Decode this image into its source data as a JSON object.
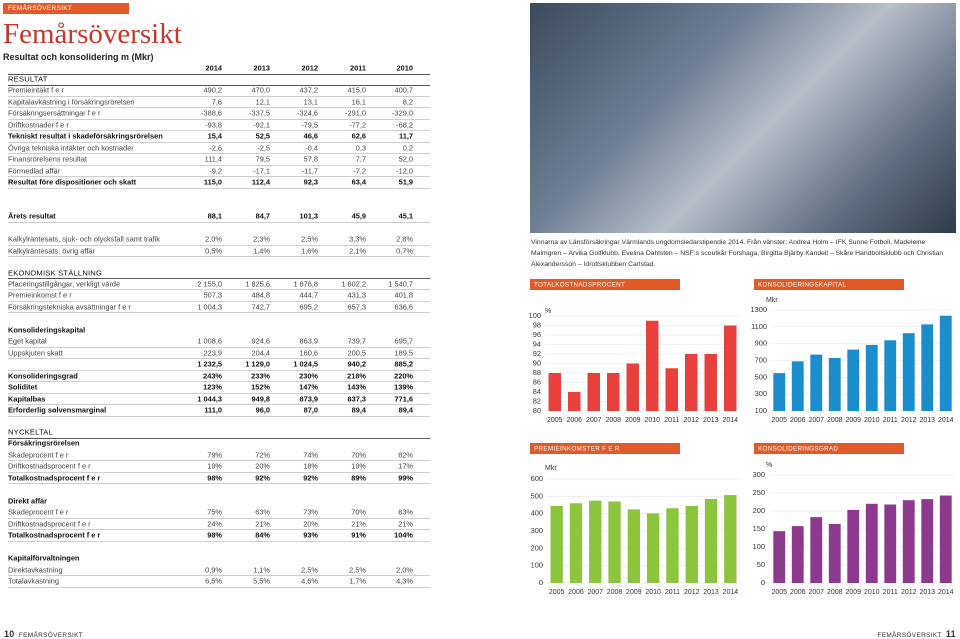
{
  "header": {
    "tag": "FEMÅRSÖVERSIKT",
    "title": "Femårsöversikt",
    "subtitle": "Resultat och konsolidering m (Mkr)"
  },
  "table": {
    "columns": [
      "2014",
      "2013",
      "2012",
      "2011",
      "2010"
    ],
    "sections": [
      {
        "title": "RESULTAT",
        "groups": [
          {
            "rows": [
              {
                "label": "Premieintäkt f e r",
                "values": [
                  "490,2",
                  "470,0",
                  "437,2",
                  "415,0",
                  "400,7"
                ]
              },
              {
                "label": "Kapitalavkastning i försäkringsrörelsen",
                "values": [
                  "7,6",
                  "12,1",
                  "13,1",
                  "16,1",
                  "8,2"
                ]
              },
              {
                "label": "Försäkringsersättningar f e r",
                "values": [
                  "-388,6",
                  "-337,5",
                  "-324,6",
                  "-291,0",
                  "-329,0"
                ]
              },
              {
                "label": "Driftkostnader f e r",
                "values": [
                  "-93,8",
                  "-92,1",
                  "-79,5",
                  "-77,2",
                  "-68,2"
                ]
              },
              {
                "label": "Tekniskt resultat i skadeförsäkringsrörelsen",
                "values": [
                  "15,4",
                  "52,5",
                  "46,6",
                  "62,6",
                  "11,7"
                ],
                "bold": true
              },
              {
                "label": "Övriga tekniska intäkter och kostnader",
                "values": [
                  "-2,6",
                  "-2,5",
                  "-0,4",
                  "0,3",
                  "0,2"
                ]
              },
              {
                "label": "Finansrörelsens resultat",
                "values": [
                  "111,4",
                  "79,5",
                  "57,8",
                  "7,7",
                  "52,0"
                ]
              },
              {
                "label": "Förmedlad affär",
                "values": [
                  "-9,2",
                  "-17,1",
                  "-11,7",
                  "-7,2",
                  "-12,0"
                ]
              },
              {
                "label": "Resultat före dispositioner och skatt",
                "values": [
                  "115,0",
                  "112,4",
                  "92,3",
                  "63,4",
                  "51,9"
                ],
                "bold": true
              }
            ]
          },
          {
            "rows": [
              {
                "label": "Årets resultat",
                "values": [
                  "88,1",
                  "84,7",
                  "101,3",
                  "45,9",
                  "45,1"
                ],
                "bold": true
              }
            ]
          },
          {
            "rows": [
              {
                "label": "Kalkylräntesats, sjuk- och olycksfall samt trafik",
                "values": [
                  "2,0%",
                  "2,3%",
                  "2,5%",
                  "3,3%",
                  "2,8%"
                ]
              },
              {
                "label": "Kalkylräntesats, övrig affär",
                "values": [
                  "0,5%",
                  "1,4%",
                  "1,6%",
                  "2,1%",
                  "0,7%"
                ]
              }
            ]
          }
        ]
      },
      {
        "title": "EKONOMISK STÄLLNING",
        "groups": [
          {
            "rows": [
              {
                "label": "Placeringstillgångar, verkligt värde",
                "values": [
                  "2 155,0",
                  "1 825,6",
                  "1 676,8",
                  "1 602,2",
                  "1 540,7"
                ]
              },
              {
                "label": "Premieinkomst f e r",
                "values": [
                  "507,3",
                  "484,8",
                  "444,7",
                  "431,3",
                  "401,8"
                ]
              },
              {
                "label": "Försäkringstekniska avsättningar f e r",
                "values": [
                  "1 004,3",
                  "742,7",
                  "695,2",
                  "657,3",
                  "636,6"
                ]
              }
            ]
          },
          {
            "title": "Konsolideringskapital",
            "rows": [
              {
                "label": "Eget kapital",
                "values": [
                  "1 008,6",
                  "924,6",
                  "863,9",
                  "739,7",
                  "695,7"
                ]
              },
              {
                "label": "Uppskjuten skatt",
                "values": [
                  "223,9",
                  "204,4",
                  "160,6",
                  "200,5",
                  "189,5"
                ]
              },
              {
                "values": [
                  "1 232,5",
                  "1 129,0",
                  "1 024,5",
                  "940,2",
                  "885,2"
                ],
                "bold": true
              },
              {
                "label": "Konsolideringsgrad",
                "values": [
                  "243%",
                  "233%",
                  "230%",
                  "218%",
                  "220%"
                ],
                "bold": true
              },
              {
                "label": "Soliditet",
                "values": [
                  "123%",
                  "152%",
                  "147%",
                  "143%",
                  "139%"
                ],
                "bold": true
              },
              {
                "label": "Kapitalbas",
                "values": [
                  "1 044,3",
                  "949,8",
                  "873,9",
                  "837,3",
                  "771,6"
                ],
                "bold": true
              },
              {
                "label": "Erforderlig solvensmarginal",
                "values": [
                  "111,0",
                  "96,0",
                  "87,0",
                  "89,4",
                  "89,4"
                ],
                "bold": true
              }
            ]
          }
        ]
      },
      {
        "title": "NYCKELTAL",
        "groups": [
          {
            "title": "Försäkringsrörelsen",
            "rows": [
              {
                "label": "Skadeprocent f e r",
                "values": [
                  "79%",
                  "72%",
                  "74%",
                  "70%",
                  "82%"
                ]
              },
              {
                "label": "Driftkostnadsprocent f e r",
                "values": [
                  "19%",
                  "20%",
                  "18%",
                  "19%",
                  "17%"
                ]
              },
              {
                "label": "Totalkostnadsprocent f e r",
                "values": [
                  "98%",
                  "92%",
                  "92%",
                  "89%",
                  "99%"
                ],
                "bold": true
              }
            ]
          },
          {
            "title": "Direkt affär",
            "rows": [
              {
                "label": "Skadeprocent f e r",
                "values": [
                  "75%",
                  "63%",
                  "73%",
                  "70%",
                  "83%"
                ]
              },
              {
                "label": "Driftkostnadsprocent f e r",
                "values": [
                  "24%",
                  "21%",
                  "20%",
                  "21%",
                  "21%"
                ]
              },
              {
                "label": "Totalkostnadsprocent f e r",
                "values": [
                  "98%",
                  "84%",
                  "93%",
                  "91%",
                  "104%"
                ],
                "bold": true
              }
            ]
          },
          {
            "title": "Kapitalförvaltningen",
            "rows": [
              {
                "label": "Direktavkastning",
                "values": [
                  "0,9%",
                  "1,1%",
                  "2,5%",
                  "2,5%",
                  "2,0%"
                ]
              },
              {
                "label": "Totalavkastning",
                "values": [
                  "6,5%",
                  "5,5%",
                  "4,6%",
                  "1,7%",
                  "4,3%"
                ]
              }
            ]
          }
        ]
      }
    ]
  },
  "photo": {
    "caption": "Vinnarna av Länsförsäkringar Värmlands ungdomsledarstipendie 2014. Från vänster; Andrea Holm – IFK Sunne Fotboll, Madeleine Malmgren – Arvika Golfklubb, Evelina Dahlsten – NSF:s scoutkår Forshaga, Birgitta Bjärby Kandell – Skåre Handbollsklubb och Christian Alexandersson – Idrottsklubben Carlstad."
  },
  "chart_data": [
    {
      "type": "bar",
      "title": "TOTALKOSTNADSPROCENT",
      "y_label": "%",
      "color": "#e8403c",
      "categories": [
        "2005",
        "2006",
        "2007",
        "2008",
        "2009",
        "2010",
        "2011",
        "2012",
        "2013",
        "2014"
      ],
      "values": [
        88,
        84,
        88,
        88,
        90,
        99,
        89,
        92,
        92,
        98
      ],
      "ylim": [
        80,
        100
      ],
      "yticks": [
        80,
        82,
        84,
        86,
        88,
        90,
        92,
        94,
        96,
        98,
        100
      ],
      "grid": true
    },
    {
      "type": "bar",
      "title": "KONSOLIDERINGSKAPITAL",
      "y_label": "Mkr",
      "color": "#1b8dcd",
      "categories": [
        "2005",
        "2006",
        "2007",
        "2008",
        "2009",
        "2010",
        "2011",
        "2012",
        "2013",
        "2014"
      ],
      "values": [
        550,
        690,
        770,
        730,
        830,
        885.2,
        940.2,
        1024.5,
        1129.0,
        1232.5
      ],
      "ylim": [
        100,
        1300
      ],
      "yticks": [
        100,
        300,
        500,
        700,
        900,
        1100,
        1300
      ],
      "grid": true
    },
    {
      "type": "bar",
      "title": "PREMIEINKOMSTER F E R",
      "y_label": "Mkr",
      "color": "#8cc43e",
      "categories": [
        "2005",
        "2006",
        "2007",
        "2008",
        "2009",
        "2010",
        "2011",
        "2012",
        "2013",
        "2014"
      ],
      "values": [
        445,
        460,
        475,
        470,
        425,
        401.8,
        431.3,
        444.7,
        484.8,
        507.3
      ],
      "ylim": [
        0,
        600
      ],
      "yticks": [
        0,
        100,
        200,
        300,
        400,
        500,
        600
      ],
      "grid": true
    },
    {
      "type": "bar",
      "title": "KONSOLIDERINGSGRAD",
      "y_label": "%",
      "color": "#8b3a8d",
      "categories": [
        "2005",
        "2006",
        "2007",
        "2008",
        "2009",
        "2010",
        "2011",
        "2012",
        "2013",
        "2014"
      ],
      "values": [
        144,
        158,
        183,
        164,
        203,
        220,
        218,
        230,
        233,
        243
      ],
      "ylim": [
        0,
        300
      ],
      "yticks": [
        0,
        50,
        100,
        150,
        200,
        250,
        300
      ],
      "grid": true
    }
  ],
  "footer": {
    "left_page": "10",
    "left_text": "FEMÅRSÖVERSIKT",
    "right_text": "FEMÅRSÖVERSIKT",
    "right_page": "11"
  }
}
